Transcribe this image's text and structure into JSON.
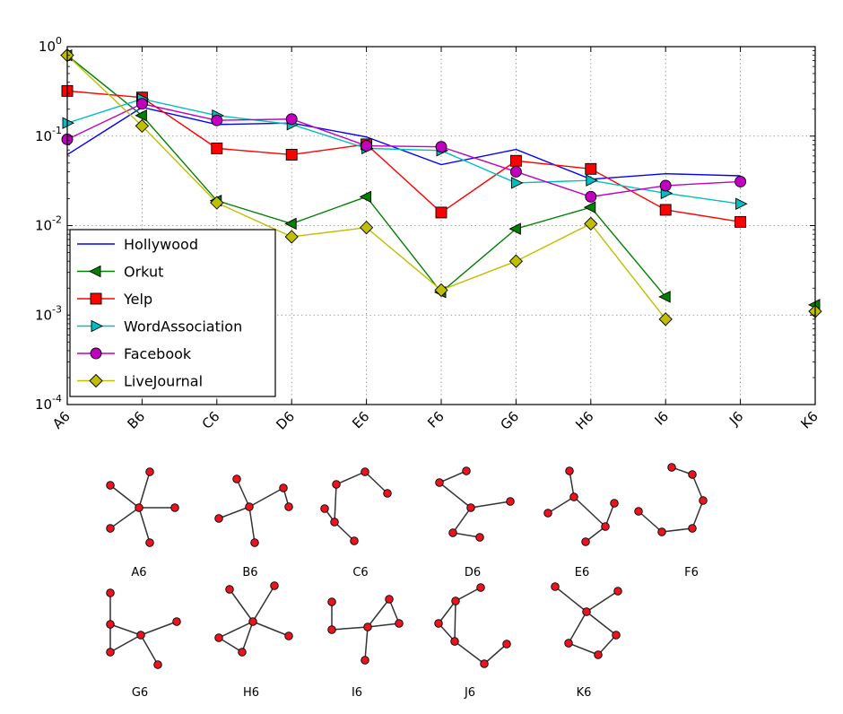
{
  "chart_data": {
    "type": "line",
    "yscale": "log",
    "ylim": [
      0.0001,
      1
    ],
    "ylabel": "",
    "xlabel": "",
    "title": "",
    "grid": true,
    "legend_position": "lower-left",
    "categories": [
      "A6",
      "B6",
      "C6",
      "D6",
      "E6",
      "F6",
      "G6",
      "H6",
      "I6",
      "J6",
      "K6"
    ],
    "y_tick_labels": [
      {
        "value": 1,
        "base": "10",
        "exp": "0"
      },
      {
        "value": 0.1,
        "base": "10",
        "exp": "-1"
      },
      {
        "value": 0.01,
        "base": "10",
        "exp": "-2"
      },
      {
        "value": 0.001,
        "base": "10",
        "exp": "-3"
      },
      {
        "value": 0.0001,
        "base": "10",
        "exp": "-4"
      }
    ],
    "series": [
      {
        "name": "Hollywood",
        "color": "#0000ff",
        "marker": "none",
        "values": [
          0.062,
          0.21,
          0.135,
          0.14,
          0.098,
          0.048,
          0.071,
          0.033,
          0.038,
          0.036,
          null
        ]
      },
      {
        "name": "Orkut",
        "color": "#007f00",
        "marker": "triangle-left",
        "values": [
          0.8,
          0.17,
          0.019,
          0.0105,
          0.021,
          0.0018,
          0.0092,
          0.016,
          0.0016,
          null,
          0.0013
        ]
      },
      {
        "name": "Yelp",
        "color": "#ff0000",
        "marker": "square",
        "values": [
          0.32,
          0.27,
          0.073,
          0.062,
          0.081,
          0.014,
          0.053,
          0.043,
          0.015,
          0.011,
          null
        ]
      },
      {
        "name": "WordAssociation",
        "color": "#00bfbf",
        "marker": "triangle-right",
        "values": [
          0.14,
          0.26,
          0.17,
          0.135,
          0.073,
          0.069,
          0.03,
          0.032,
          0.023,
          0.0175,
          null
        ]
      },
      {
        "name": "Facebook",
        "color": "#bf00bf",
        "marker": "circle",
        "values": [
          0.092,
          0.23,
          0.15,
          0.155,
          0.078,
          0.076,
          0.04,
          0.021,
          0.028,
          0.031,
          null
        ]
      },
      {
        "name": "LiveJournal",
        "color": "#bfbf00",
        "marker": "diamond",
        "values": [
          0.8,
          0.13,
          0.018,
          0.0075,
          0.0095,
          0.0019,
          0.004,
          0.0105,
          0.0009,
          null,
          0.0011
        ]
      }
    ],
    "graphlets": [
      {
        "label": "A6",
        "nodes": [
          [
            -32,
            -25
          ],
          [
            12,
            -40
          ],
          [
            -32,
            23
          ],
          [
            40,
            0
          ],
          [
            12,
            39
          ],
          [
            0,
            0
          ]
        ],
        "edges": [
          [
            0,
            5
          ],
          [
            1,
            5
          ],
          [
            2,
            5
          ],
          [
            3,
            5
          ],
          [
            4,
            5
          ]
        ]
      },
      {
        "label": "B6",
        "nodes": [
          [
            -14,
            -31
          ],
          [
            -34,
            13
          ],
          [
            0,
            0
          ],
          [
            6,
            40
          ],
          [
            38,
            -21
          ],
          [
            44,
            0
          ]
        ],
        "edges": [
          [
            0,
            2
          ],
          [
            1,
            2
          ],
          [
            2,
            3
          ],
          [
            2,
            4
          ],
          [
            4,
            5
          ]
        ]
      },
      {
        "label": "C6",
        "nodes": [
          [
            -25,
            -27
          ],
          [
            7,
            -41
          ],
          [
            32,
            -17
          ],
          [
            -38,
            0
          ],
          [
            -27,
            15
          ],
          [
            -5,
            36
          ]
        ],
        "edges": [
          [
            0,
            1
          ],
          [
            1,
            2
          ],
          [
            0,
            4
          ],
          [
            3,
            4
          ],
          [
            4,
            5
          ]
        ]
      },
      {
        "label": "D6",
        "nodes": [
          [
            -35,
            -28
          ],
          [
            -5,
            -41
          ],
          [
            0,
            0
          ],
          [
            44,
            -7
          ],
          [
            -20,
            28
          ],
          [
            10,
            33
          ]
        ],
        "edges": [
          [
            0,
            2
          ],
          [
            1,
            0
          ],
          [
            2,
            3
          ],
          [
            2,
            4
          ],
          [
            4,
            5
          ]
        ]
      },
      {
        "label": "E6",
        "nodes": [
          [
            -10,
            -41
          ],
          [
            -5,
            -12
          ],
          [
            30,
            21
          ],
          [
            40,
            -5
          ],
          [
            -34,
            6
          ],
          [
            8,
            38
          ]
        ],
        "edges": [
          [
            0,
            1
          ],
          [
            1,
            2
          ],
          [
            1,
            4
          ],
          [
            2,
            3
          ],
          [
            2,
            5
          ]
        ]
      },
      {
        "label": "F6",
        "nodes": [
          [
            -23,
            -45
          ],
          [
            0,
            -37
          ],
          [
            12,
            -8
          ],
          [
            0,
            23
          ],
          [
            -34,
            27
          ],
          [
            -60,
            4
          ]
        ],
        "edges": [
          [
            0,
            1
          ],
          [
            1,
            2
          ],
          [
            2,
            3
          ],
          [
            3,
            4
          ],
          [
            4,
            5
          ]
        ]
      },
      {
        "label": "G6",
        "nodes": [
          [
            -34,
            -47
          ],
          [
            -34,
            -12
          ],
          [
            -34,
            19
          ],
          [
            0,
            0
          ],
          [
            40,
            -15
          ],
          [
            19,
            33
          ]
        ],
        "edges": [
          [
            0,
            1
          ],
          [
            1,
            2
          ],
          [
            1,
            3
          ],
          [
            2,
            3
          ],
          [
            3,
            4
          ],
          [
            3,
            5
          ]
        ]
      },
      {
        "label": "H6",
        "nodes": [
          [
            -26,
            -36
          ],
          [
            24,
            -40
          ],
          [
            0,
            0
          ],
          [
            40,
            16
          ],
          [
            -38,
            18
          ],
          [
            -12,
            34
          ]
        ],
        "edges": [
          [
            0,
            2
          ],
          [
            1,
            2
          ],
          [
            2,
            3
          ],
          [
            2,
            4
          ],
          [
            4,
            5
          ],
          [
            2,
            5
          ]
        ]
      },
      {
        "label": "I6",
        "nodes": [
          [
            -40,
            -31
          ],
          [
            -40,
            0
          ],
          [
            0,
            -3
          ],
          [
            -3,
            34
          ],
          [
            24,
            -34
          ],
          [
            35,
            -7
          ]
        ],
        "edges": [
          [
            0,
            1
          ],
          [
            1,
            2
          ],
          [
            2,
            3
          ],
          [
            2,
            4
          ],
          [
            2,
            5
          ],
          [
            4,
            5
          ]
        ]
      },
      {
        "label": "J6",
        "nodes": [
          [
            -2,
            -28
          ],
          [
            26,
            -43
          ],
          [
            -21,
            -3
          ],
          [
            -3,
            17
          ],
          [
            30,
            42
          ],
          [
            55,
            20
          ]
        ],
        "edges": [
          [
            1,
            0
          ],
          [
            0,
            3
          ],
          [
            2,
            0
          ],
          [
            2,
            3
          ],
          [
            3,
            4
          ],
          [
            4,
            5
          ]
        ]
      },
      {
        "label": "K6",
        "nodes": [
          [
            -35,
            -28
          ],
          [
            35,
            -23
          ],
          [
            0,
            0
          ],
          [
            33,
            26
          ],
          [
            -20,
            35
          ],
          [
            13,
            48
          ]
        ],
        "edges": [
          [
            0,
            2
          ],
          [
            1,
            2
          ],
          [
            2,
            3
          ],
          [
            2,
            4
          ],
          [
            3,
            5
          ],
          [
            4,
            5
          ]
        ]
      }
    ]
  }
}
